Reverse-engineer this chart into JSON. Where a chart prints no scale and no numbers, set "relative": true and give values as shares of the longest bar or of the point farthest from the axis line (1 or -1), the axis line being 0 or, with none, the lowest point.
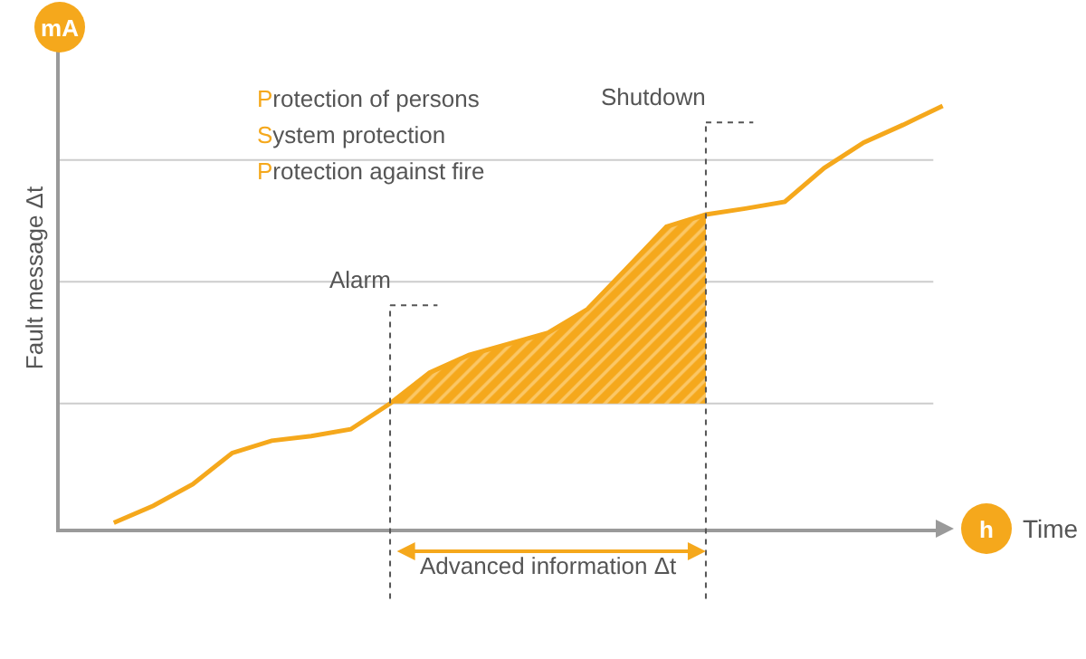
{
  "chart_data": {
    "type": "line",
    "relative": true,
    "xlabel": "Time",
    "ylabel": "Fault message Δt",
    "marker": "none",
    "line_style": "solid",
    "categories": [
      null,
      null,
      null,
      null,
      null,
      null,
      null,
      null,
      null,
      null,
      null,
      null,
      null,
      null,
      null,
      null,
      null,
      null,
      null,
      null,
      null,
      null
    ],
    "series": [
      {
        "color": "#f5a81c",
        "values": [
          0.014,
          0.054,
          0.105,
          0.179,
          0.208,
          0.219,
          0.235,
          0.296,
          0.369,
          0.411,
          0.437,
          0.463,
          0.519,
          0.616,
          0.714,
          0.743,
          0.757,
          0.773,
          0.853,
          0.913,
          0.955,
          1
        ],
        "lower": [
          null,
          null,
          null,
          null,
          null,
          null,
          null,
          0.296,
          0.296,
          0.296,
          0.296,
          0.296,
          0.296,
          0.296,
          0.296,
          0.296,
          null,
          null,
          null,
          null,
          null,
          null
        ],
        "upper": [
          null,
          null,
          null,
          null,
          null,
          null,
          null,
          0.296,
          0.369,
          0.411,
          0.437,
          0.463,
          0.519,
          0.616,
          0.714,
          0.743,
          null,
          null,
          null,
          null,
          null,
          null
        ]
      }
    ],
    "ref_lines": [
      {
        "axis": "y",
        "value": 0.296,
        "color": "#cccccc"
      },
      {
        "axis": "y",
        "value": 0.584,
        "color": "#cccccc"
      },
      {
        "axis": "y",
        "value": 0.872,
        "color": "#cccccc"
      }
    ],
    "annotations": [
      "mA",
      "h",
      "Protection of persons",
      "System protection",
      "Protection against fire",
      "Alarm",
      "Shutdown",
      "Advanced information Δt"
    ]
  }
}
